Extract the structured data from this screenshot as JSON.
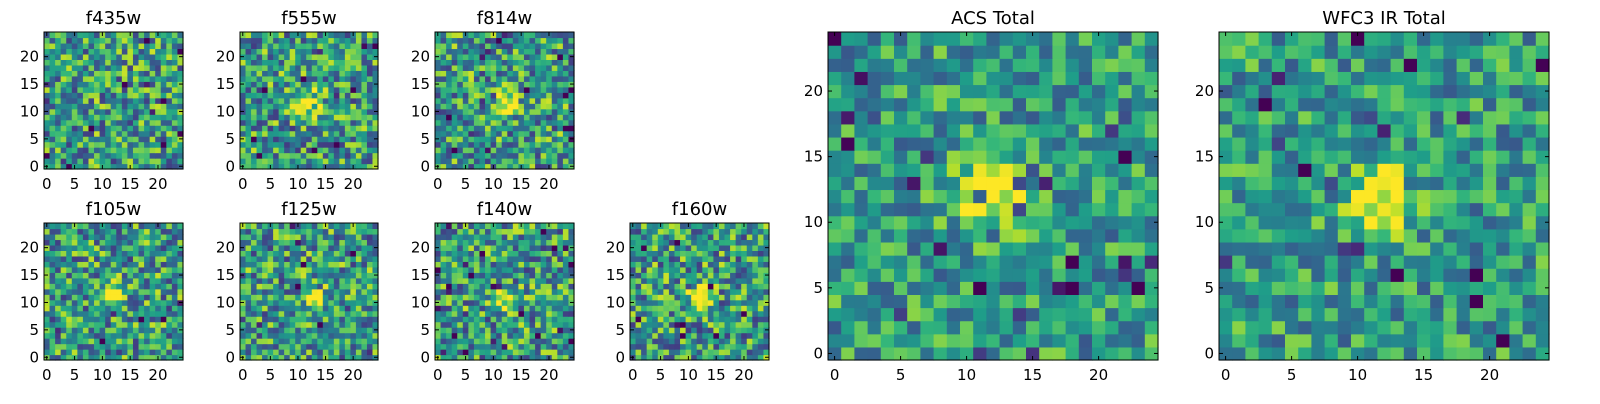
{
  "figure": {
    "colormap": "viridis",
    "grid": false
  },
  "chart_data": [
    {
      "type": "heatmap",
      "title": "f435w",
      "xticks": [
        0,
        5,
        10,
        15,
        20
      ],
      "yticks": [
        0,
        5,
        10,
        15,
        20
      ],
      "xlim": [
        -0.5,
        24.5
      ],
      "ylim": [
        -0.5,
        24.5
      ],
      "size": 25,
      "hotspot": null
    },
    {
      "type": "heatmap",
      "title": "f555w",
      "xticks": [
        0,
        5,
        10,
        15,
        20
      ],
      "yticks": [
        0,
        5,
        10,
        15,
        20
      ],
      "xlim": [
        -0.5,
        24.5
      ],
      "ylim": [
        -0.5,
        24.5
      ],
      "size": 25,
      "hotspot": [
        12,
        12
      ]
    },
    {
      "type": "heatmap",
      "title": "f814w",
      "xticks": [
        0,
        5,
        10,
        15,
        20
      ],
      "yticks": [
        0,
        5,
        10,
        15,
        20
      ],
      "xlim": [
        -0.5,
        24.5
      ],
      "ylim": [
        -0.5,
        24.5
      ],
      "size": 25,
      "hotspot": [
        12,
        11
      ]
    },
    {
      "type": "heatmap",
      "title": "f105w",
      "xticks": [
        0,
        5,
        10,
        15,
        20
      ],
      "yticks": [
        0,
        5,
        10,
        15,
        20
      ],
      "xlim": [
        -0.5,
        24.5
      ],
      "ylim": [
        -0.5,
        24.5
      ],
      "size": 25,
      "hotspot": [
        12,
        11
      ]
    },
    {
      "type": "heatmap",
      "title": "f125w",
      "xticks": [
        0,
        5,
        10,
        15,
        20
      ],
      "yticks": [
        0,
        5,
        10,
        15,
        20
      ],
      "xlim": [
        -0.5,
        24.5
      ],
      "ylim": [
        -0.5,
        24.5
      ],
      "size": 25,
      "hotspot": [
        13,
        11
      ]
    },
    {
      "type": "heatmap",
      "title": "f140w",
      "xticks": [
        0,
        5,
        10,
        15,
        20
      ],
      "yticks": [
        0,
        5,
        10,
        15,
        20
      ],
      "xlim": [
        -0.5,
        24.5
      ],
      "ylim": [
        -0.5,
        24.5
      ],
      "size": 25,
      "hotspot": [
        12,
        11
      ]
    },
    {
      "type": "heatmap",
      "title": "f160w",
      "xticks": [
        0,
        5,
        10,
        15,
        20
      ],
      "yticks": [
        0,
        5,
        10,
        15,
        20
      ],
      "xlim": [
        -0.5,
        24.5
      ],
      "ylim": [
        -0.5,
        24.5
      ],
      "size": 25,
      "hotspot": [
        12,
        11
      ]
    },
    {
      "type": "heatmap",
      "title": "ACS Total",
      "xticks": [
        0,
        5,
        10,
        15,
        20
      ],
      "yticks": [
        0,
        5,
        10,
        15,
        20
      ],
      "xlim": [
        -0.5,
        24.5
      ],
      "ylim": [
        -0.5,
        24.5
      ],
      "size": 25,
      "hotspot": [
        12,
        12
      ]
    },
    {
      "type": "heatmap",
      "title": "WFC3 IR Total",
      "xticks": [
        0,
        5,
        10,
        15,
        20
      ],
      "yticks": [
        0,
        5,
        10,
        15,
        20
      ],
      "xlim": [
        -0.5,
        24.5
      ],
      "ylim": [
        -0.5,
        24.5
      ],
      "size": 25,
      "hotspot": [
        12,
        12
      ]
    }
  ]
}
